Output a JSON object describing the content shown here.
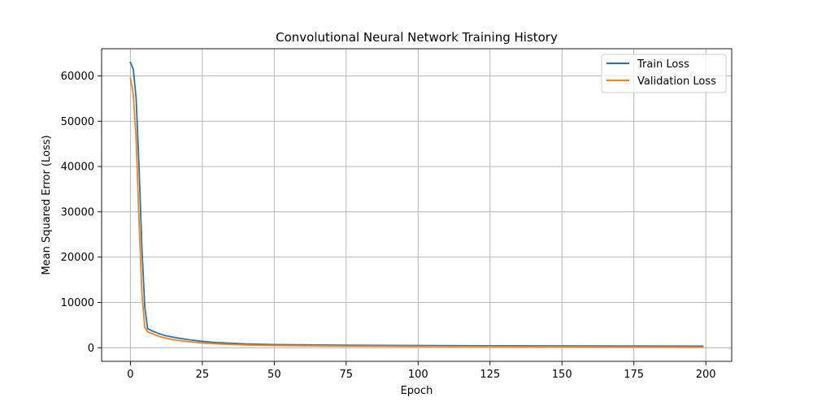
{
  "chart_data": {
    "type": "line",
    "title": "Convolutional Neural Network Training History",
    "xlabel": "Epoch",
    "ylabel": "Mean Squared Error (Loss)",
    "xlim": [
      -10,
      209
    ],
    "ylim": [
      -3000,
      66000
    ],
    "xticks": [
      0,
      25,
      50,
      75,
      100,
      125,
      150,
      175,
      200
    ],
    "yticks": [
      0,
      10000,
      20000,
      30000,
      40000,
      50000,
      60000
    ],
    "grid": true,
    "legend_position": "top-right",
    "series": [
      {
        "name": "Train Loss",
        "color": "#1f77b4",
        "x": [
          0,
          1,
          2,
          3,
          4,
          5,
          6,
          8,
          10,
          12,
          15,
          20,
          25,
          30,
          40,
          50,
          75,
          100,
          125,
          150,
          175,
          199
        ],
        "y": [
          63000,
          61500,
          55000,
          40000,
          22000,
          9000,
          4200,
          3600,
          3100,
          2700,
          2300,
          1800,
          1400,
          1150,
          850,
          700,
          560,
          480,
          430,
          400,
          370,
          350
        ]
      },
      {
        "name": "Validation Loss",
        "color": "#ff7f0e",
        "x": [
          0,
          1,
          2,
          3,
          4,
          5,
          6,
          8,
          10,
          12,
          15,
          20,
          25,
          30,
          40,
          50,
          75,
          100,
          125,
          150,
          175,
          199
        ],
        "y": [
          59500,
          56000,
          46000,
          28000,
          12000,
          4500,
          3500,
          3000,
          2500,
          2150,
          1750,
          1350,
          1050,
          850,
          620,
          500,
          380,
          300,
          250,
          220,
          180,
          150
        ]
      }
    ]
  }
}
